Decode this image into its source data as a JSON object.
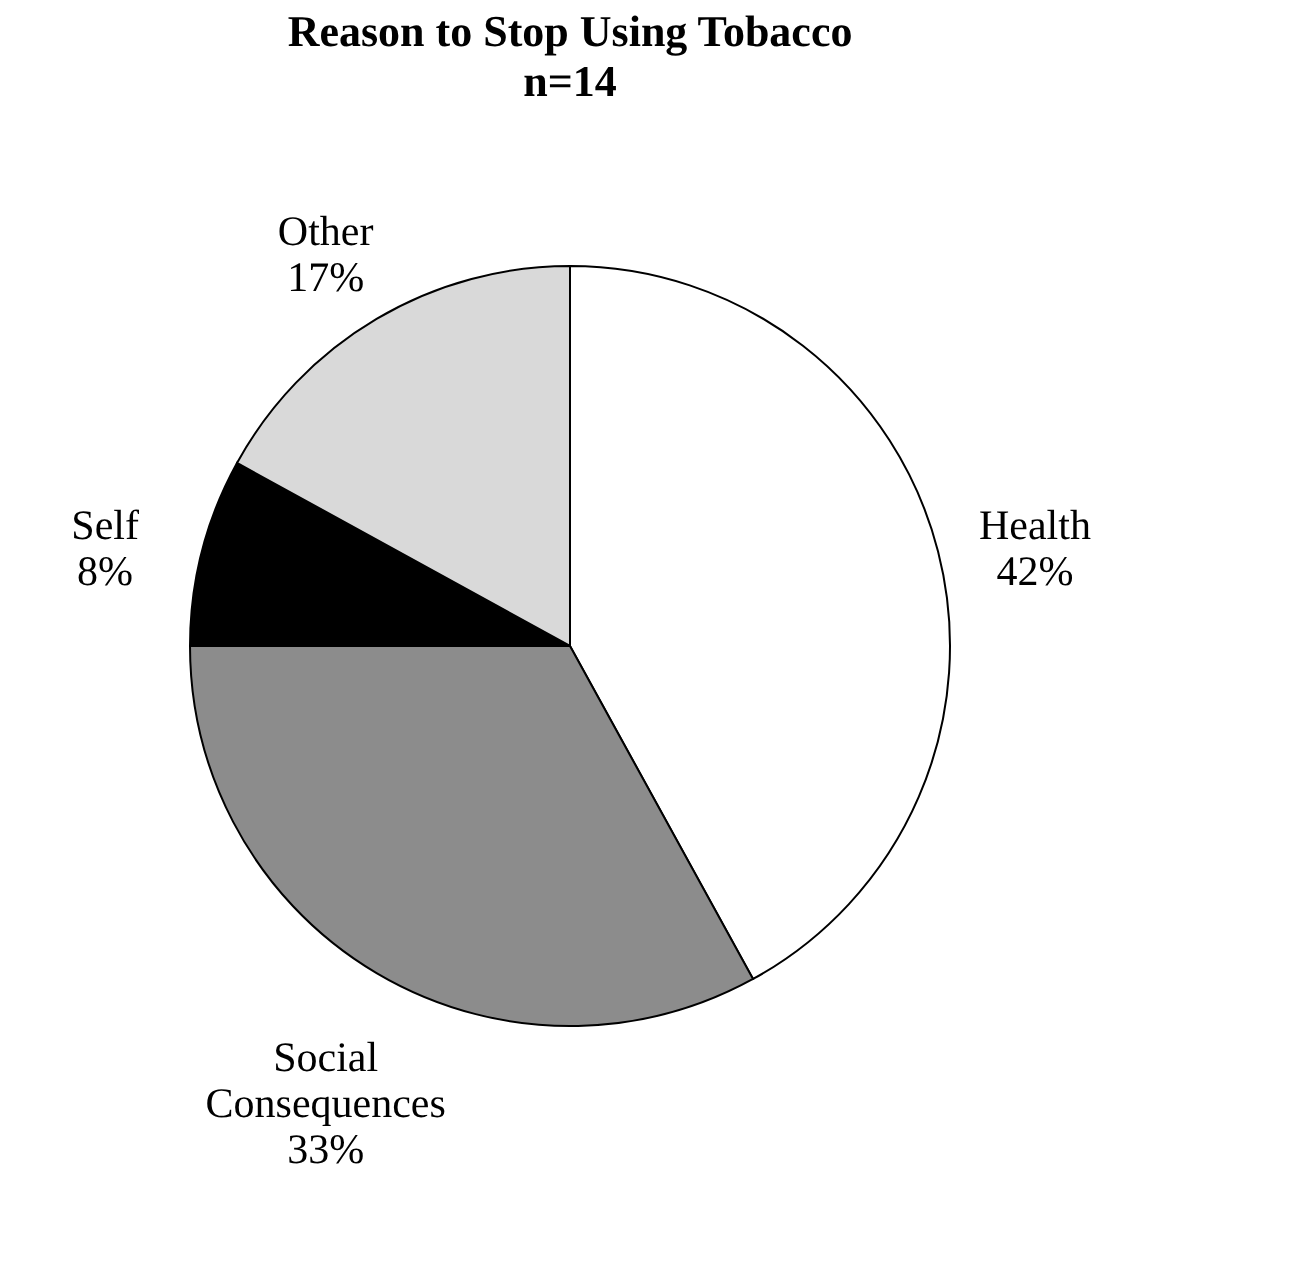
{
  "chart_data": {
    "type": "pie",
    "title": "Reason to Stop Using Tobacco",
    "subtitle": "n=14",
    "categories": [
      "Health",
      "Social Consequences",
      "Self",
      "Other"
    ],
    "values": [
      42,
      33,
      8,
      17
    ],
    "value_labels": [
      "42%",
      "33%",
      "8%",
      "17%"
    ],
    "colors": [
      "#ffffff",
      "#8c8c8c",
      "#000000",
      "#d9d9d9"
    ],
    "legend": false
  }
}
